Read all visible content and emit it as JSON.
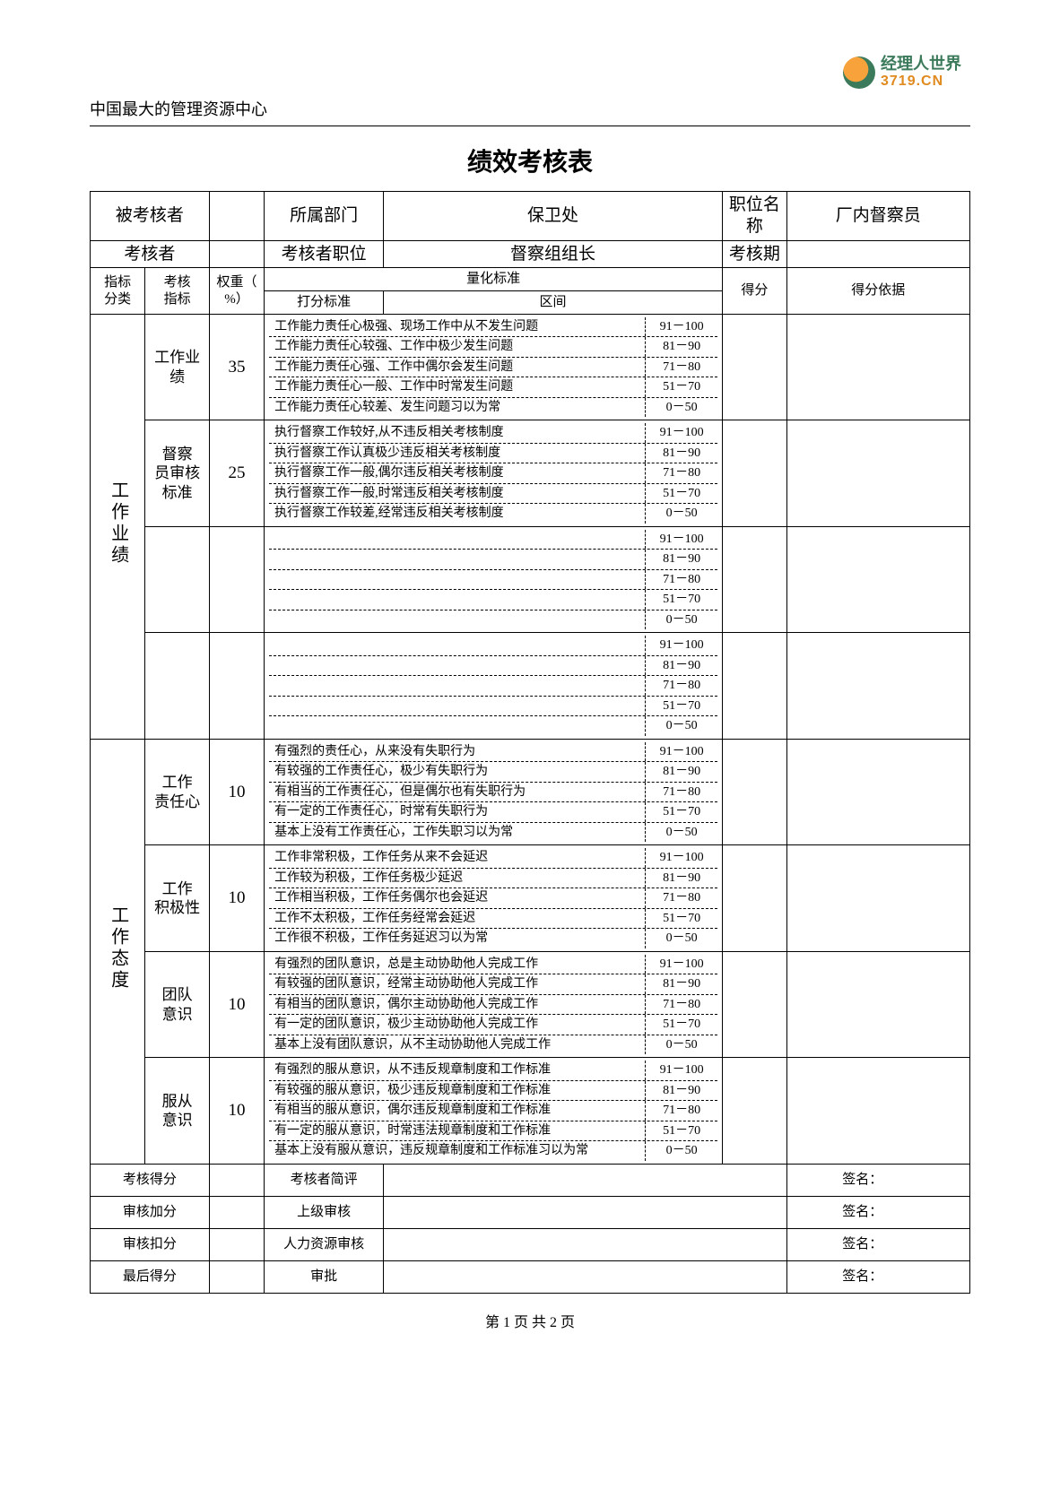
{
  "logo": {
    "cn": "经理人世界",
    "en": "3719.CN"
  },
  "header_sub": "中国最大的管理资源中心",
  "title": "绩效考核表",
  "row1": {
    "l1": "被考核者",
    "v1": "",
    "l2": "所属部门",
    "v2": "保卫处",
    "l3": "职位名称",
    "v3": "厂内督察员"
  },
  "row2": {
    "l1": "考核者",
    "v1": "",
    "l2": "考核者职位",
    "v2": "督察组组长",
    "l3": "考核期",
    "v3": ""
  },
  "hdr": {
    "c1a": "指标",
    "c1b": "分类",
    "c2a": "考核",
    "c2b": "指标",
    "c3a": "权重（",
    "c3b": "%）",
    "c4": "量化标准",
    "c4a": "打分标准",
    "c4b": "区间",
    "c5": "得分",
    "c6": "得分依据"
  },
  "cat1": "工作业绩",
  "cat2": "工作态度",
  "ranges": [
    "91－100",
    "81－90",
    "71－80",
    "51－70",
    "0－50"
  ],
  "g1": {
    "name": "工作业绩",
    "name2": "",
    "w": "35",
    "d": [
      "工作能力责任心极强、现场工作中从不发生问题",
      "工作能力责任心较强、工作中极少发生问题",
      "工作能力责任心强、工作中偶尔会发生问题",
      "工作能力责任心一般、工作中时常发生问题",
      "工作能力责任心较差、发生问题习以为常"
    ]
  },
  "g2": {
    "name": "督察",
    "name2": "员审核",
    "name3": "标准",
    "w": "25",
    "d": [
      "执行督察工作较好,从不违反相关考核制度",
      "执行督察工作认真极少违反相关考核制度",
      "执行督察工作一般,偶尔违反相关考核制度",
      "执行督察工作一般,时常违反相关考核制度",
      "执行督察工作较差,经常违反相关考核制度"
    ]
  },
  "g3": {
    "name": "",
    "w": "",
    "d": [
      "",
      "",
      "",
      "",
      ""
    ]
  },
  "g4": {
    "name": "",
    "w": "",
    "d": [
      "",
      "",
      "",
      "",
      ""
    ]
  },
  "g5": {
    "name": "工作",
    "name2": "责任心",
    "w": "10",
    "d": [
      "有强烈的责任心，从来没有失职行为",
      "有较强的工作责任心，极少有失职行为",
      "有相当的工作责任心，但是偶尔也有失职行为",
      "有一定的工作责任心，时常有失职行为",
      "基本上没有工作责任心，工作失职习以为常"
    ]
  },
  "g6": {
    "name": "工作",
    "name2": "积极性",
    "w": "10",
    "d": [
      "工作非常积极，工作任务从来不会延迟",
      "工作较为积极，工作任务极少延迟",
      "工作相当积极，工作任务偶尔也会延迟",
      "工作不太积极，工作任务经常会延迟",
      "工作很不积极，工作任务延迟习以为常"
    ]
  },
  "g7": {
    "name": "团队",
    "name2": "意识",
    "w": "10",
    "d": [
      "有强烈的团队意识，总是主动协助他人完成工作",
      "有较强的团队意识，经常主动协助他人完成工作",
      "有相当的团队意识，偶尔主动协助他人完成工作",
      "有一定的团队意识，极少主动协助他人完成工作",
      "基本上没有团队意识，从不主动协助他人完成工作"
    ]
  },
  "g8": {
    "name": "服从",
    "name2": "意识",
    "w": "10",
    "d": [
      "有强烈的服从意识，从不违反规章制度和工作标准",
      "有较强的服从意识，极少违反规章制度和工作标准",
      "有相当的服从意识，偶尔违反规章制度和工作标准",
      "有一定的服从意识，时常违法规章制度和工作标准",
      "基本上没有服从意识，违反规章制度和工作标准习以为常"
    ]
  },
  "bottom": {
    "r1a": "考核得分",
    "r1b": "考核者简评",
    "sign": "签名：",
    "r2a": "审核加分",
    "r2b": "上级审核",
    "r3a": "审核扣分",
    "r3b": "人力资源审核",
    "r4a": "最后得分",
    "r4b": "审批"
  },
  "footer": "第 1 页 共 2 页"
}
